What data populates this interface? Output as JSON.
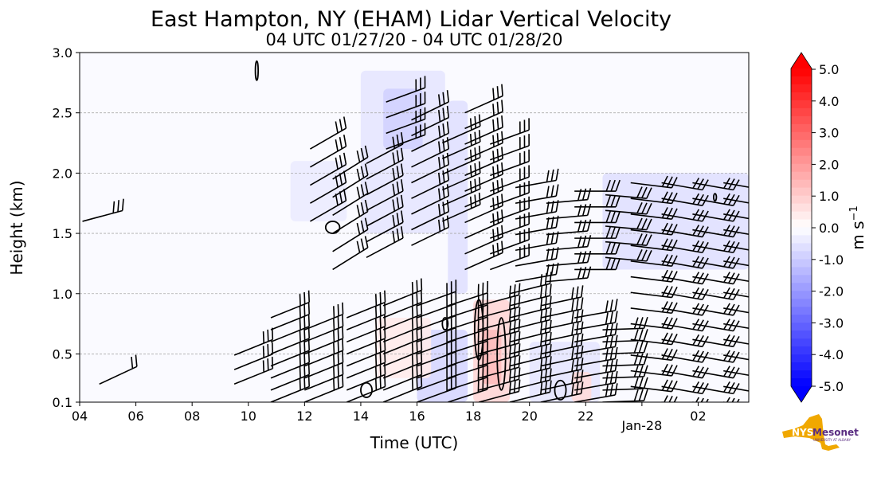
{
  "chart_data": {
    "type": "heatmap",
    "title": "East Hampton, NY (EHAM) Lidar Vertical Velocity",
    "subtitle": "04 UTC 01/27/20 - 04 UTC 01/28/20",
    "xlabel": "Time (UTC)",
    "ylabel": "Height (km)",
    "xlim_hours": [
      4,
      27.8
    ],
    "ylim": [
      0.1,
      3.0
    ],
    "x_ticks": [
      {
        "hour": 4,
        "label": "04"
      },
      {
        "hour": 6,
        "label": "06"
      },
      {
        "hour": 8,
        "label": "08"
      },
      {
        "hour": 10,
        "label": "10"
      },
      {
        "hour": 12,
        "label": "12"
      },
      {
        "hour": 14,
        "label": "14"
      },
      {
        "hour": 16,
        "label": "16"
      },
      {
        "hour": 18,
        "label": "18"
      },
      {
        "hour": 20,
        "label": "20"
      },
      {
        "hour": 22,
        "label": "22"
      },
      {
        "hour": 24,
        "label": "Jan-28"
      },
      {
        "hour": 26,
        "label": "02"
      }
    ],
    "y_ticks": [
      {
        "value": 0.1,
        "label": "0.1"
      },
      {
        "value": 0.5,
        "label": "0.5"
      },
      {
        "value": 1.0,
        "label": "1.0"
      },
      {
        "value": 1.5,
        "label": "1.5"
      },
      {
        "value": 2.0,
        "label": "2.0"
      },
      {
        "value": 2.5,
        "label": "2.5"
      },
      {
        "value": 3.0,
        "label": "3.0"
      }
    ],
    "grid": "horizontal dashed",
    "background_w": -0.1,
    "shading": [
      {
        "t0": 14.0,
        "t1": 17.0,
        "h0": 1.5,
        "h1": 2.85,
        "w": -0.5
      },
      {
        "t0": 14.8,
        "t1": 16.2,
        "h0": 2.2,
        "h1": 2.7,
        "w": -0.9
      },
      {
        "t0": 11.5,
        "t1": 13.5,
        "h0": 1.6,
        "h1": 2.1,
        "w": -0.4
      },
      {
        "t0": 17.1,
        "t1": 17.8,
        "h0": 1.0,
        "h1": 2.6,
        "w": -0.6
      },
      {
        "t0": 22.6,
        "t1": 27.8,
        "h0": 1.2,
        "h1": 2.0,
        "w": -0.6
      },
      {
        "t0": 16.0,
        "t1": 17.8,
        "h0": 0.1,
        "h1": 0.7,
        "w": -0.8
      },
      {
        "t0": 20.0,
        "t1": 22.5,
        "h0": 0.1,
        "h1": 0.6,
        "w": -0.5
      },
      {
        "t0": 14.5,
        "t1": 16.5,
        "h0": 0.3,
        "h1": 0.8,
        "w": 0.4
      },
      {
        "t0": 18.0,
        "t1": 19.3,
        "h0": 0.1,
        "h1": 0.95,
        "w": 0.8
      },
      {
        "t0": 18.3,
        "t1": 19.0,
        "h0": 0.25,
        "h1": 0.7,
        "w": 1.3
      },
      {
        "t0": 21.5,
        "t1": 22.2,
        "h0": 0.1,
        "h1": 0.35,
        "w": 0.7
      }
    ],
    "contours": [
      {
        "t": 18.2,
        "h": 0.7,
        "rt": 0.15,
        "rh": 0.25
      },
      {
        "t": 19.0,
        "h": 0.5,
        "rt": 0.15,
        "rh": 0.3
      },
      {
        "t": 13.0,
        "h": 1.55,
        "rt": 0.25,
        "rh": 0.05
      },
      {
        "t": 17.0,
        "h": 0.75,
        "rt": 0.1,
        "rh": 0.05
      },
      {
        "t": 21.1,
        "h": 0.2,
        "rt": 0.2,
        "rh": 0.08
      },
      {
        "t": 14.2,
        "h": 0.2,
        "rt": 0.2,
        "rh": 0.06
      },
      {
        "t": 26.6,
        "h": 1.8,
        "rt": 0.05,
        "rh": 0.03
      },
      {
        "t": 10.3,
        "h": 2.85,
        "rt": 0.05,
        "rh": 0.08
      }
    ],
    "barb_columns": [
      {
        "t": 4.1,
        "h0": 1.6,
        "h1": 1.65,
        "step": 0.1,
        "dir": 75,
        "speed": 25
      },
      {
        "t": 4.7,
        "h0": 0.25,
        "h1": 0.25,
        "step": 0.1,
        "dir": 65,
        "speed": 15
      },
      {
        "t": 9.5,
        "h0": 0.25,
        "h1": 0.6,
        "step": 0.12,
        "dir": 68,
        "speed": 30
      },
      {
        "t": 10.8,
        "h0": 0.1,
        "h1": 0.8,
        "step": 0.1,
        "dir": 68,
        "speed": 30
      },
      {
        "t": 12.2,
        "h0": 1.6,
        "h1": 2.2,
        "step": 0.15,
        "dir": 60,
        "speed": 25
      },
      {
        "t": 12.0,
        "h0": 0.1,
        "h1": 0.7,
        "step": 0.1,
        "dir": 68,
        "speed": 30
      },
      {
        "t": 13.0,
        "h0": 1.2,
        "h1": 2.0,
        "step": 0.15,
        "dir": 58,
        "speed": 30
      },
      {
        "t": 13.5,
        "h0": 0.1,
        "h1": 0.8,
        "step": 0.1,
        "dir": 68,
        "speed": 30
      },
      {
        "t": 14.2,
        "h0": 1.3,
        "h1": 2.2,
        "step": 0.13,
        "dir": 62,
        "speed": 30
      },
      {
        "t": 14.9,
        "h0": 2.2,
        "h1": 2.6,
        "step": 0.13,
        "dir": 70,
        "speed": 30
      },
      {
        "t": 14.8,
        "h0": 0.1,
        "h1": 0.9,
        "step": 0.1,
        "dir": 68,
        "speed": 30
      },
      {
        "t": 15.8,
        "h0": 1.4,
        "h1": 2.5,
        "step": 0.13,
        "dir": 64,
        "speed": 30
      },
      {
        "t": 16.0,
        "h0": 0.1,
        "h1": 0.9,
        "step": 0.1,
        "dir": 70,
        "speed": 30
      },
      {
        "t": 16.9,
        "h0": 1.6,
        "h1": 2.3,
        "step": 0.13,
        "dir": 66,
        "speed": 30
      },
      {
        "t": 17.1,
        "h0": 0.1,
        "h1": 0.9,
        "step": 0.1,
        "dir": 72,
        "speed": 30
      },
      {
        "t": 17.7,
        "h0": 1.2,
        "h1": 2.5,
        "step": 0.13,
        "dir": 66,
        "speed": 30
      },
      {
        "t": 18.2,
        "h0": 0.1,
        "h1": 0.95,
        "step": 0.1,
        "dir": 75,
        "speed": 30
      },
      {
        "t": 18.6,
        "h0": 1.2,
        "h1": 2.3,
        "step": 0.13,
        "dir": 70,
        "speed": 30
      },
      {
        "t": 19.3,
        "h0": 0.1,
        "h1": 1.0,
        "step": 0.1,
        "dir": 76,
        "speed": 30
      },
      {
        "t": 19.5,
        "h0": 1.1,
        "h1": 2.0,
        "step": 0.13,
        "dir": 80,
        "speed": 30
      },
      {
        "t": 20.4,
        "h0": 0.1,
        "h1": 0.9,
        "step": 0.1,
        "dir": 78,
        "speed": 30
      },
      {
        "t": 20.6,
        "h0": 1.1,
        "h1": 1.8,
        "step": 0.13,
        "dir": 85,
        "speed": 30
      },
      {
        "t": 21.6,
        "h0": 0.1,
        "h1": 0.8,
        "step": 0.1,
        "dir": 80,
        "speed": 30
      },
      {
        "t": 21.6,
        "h0": 1.2,
        "h1": 1.9,
        "step": 0.13,
        "dir": 90,
        "speed": 25
      },
      {
        "t": 22.6,
        "h0": 0.1,
        "h1": 0.7,
        "step": 0.1,
        "dir": 88,
        "speed": 30
      },
      {
        "t": 22.7,
        "h0": 1.3,
        "h1": 1.9,
        "step": 0.13,
        "dir": 95,
        "speed": 25
      },
      {
        "t": 23.6,
        "h0": 0.1,
        "h1": 2.0,
        "step": 0.13,
        "dir": 97,
        "speed": 30
      },
      {
        "t": 24.7,
        "h0": 0.1,
        "h1": 2.0,
        "step": 0.13,
        "dir": 100,
        "speed": 30
      },
      {
        "t": 25.8,
        "h0": 0.1,
        "h1": 2.0,
        "step": 0.13,
        "dir": 100,
        "speed": 30
      },
      {
        "t": 26.9,
        "h0": 0.1,
        "h1": 2.0,
        "step": 0.13,
        "dir": 100,
        "speed": 30
      }
    ],
    "colorbar": {
      "label": "m s",
      "label_sup": "−1",
      "vmin": -5.0,
      "vmax": 5.0,
      "extend": "both",
      "colormap": "bwr",
      "ticks": [
        "5.0",
        "4.0",
        "3.0",
        "2.0",
        "1.0",
        "0.0",
        "-1.0",
        "-2.0",
        "-3.0",
        "-4.0",
        "-5.0"
      ],
      "colors": {
        "neg": "#0000ff",
        "zero": "#ffffff",
        "pos": "#ff0000"
      }
    }
  },
  "logo": {
    "text_nys": "NYS",
    "text_mesonet": "Mesonet",
    "text_sub": "UNIVERSITY AT ALBANY",
    "colors": {
      "state": "#f0a800",
      "text": "#5a2d82"
    }
  }
}
